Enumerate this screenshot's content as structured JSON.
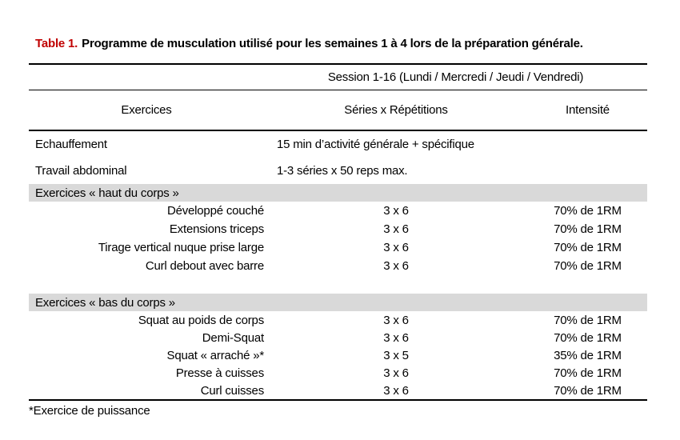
{
  "page": {
    "title_label": "Table 1.",
    "title_text": "Programme de musculation utilisé pour les semaines 1 à 4 lors de la préparation générale.",
    "footnote": "*Exercice de puissance",
    "accent_color": "#C00000",
    "band_color": "#D9D9D9"
  },
  "table": {
    "session_header": "Session 1-16 (Lundi / Mercredi / Jeudi / Vendredi)",
    "columns": [
      "Exercices",
      "Séries x Répétitions",
      "Intensité"
    ],
    "general_rows": [
      {
        "label": "Echauffement",
        "value": "15 min d’activité générale + spécifique"
      },
      {
        "label": "Travail abdominal",
        "value": "1-3 séries x 50 reps max."
      }
    ],
    "sections": [
      {
        "header": "Exercices « haut du corps »",
        "rows": [
          {
            "exercise": "Développé couché",
            "sets": "3 x 6",
            "intensity": "70% de 1RM"
          },
          {
            "exercise": "Extensions triceps",
            "sets": "3 x 6",
            "intensity": "70% de 1RM"
          },
          {
            "exercise": "Tirage vertical nuque prise large",
            "sets": "3 x 6",
            "intensity": "70% de 1RM"
          },
          {
            "exercise": "Curl debout avec barre",
            "sets": "3 x 6",
            "intensity": "70% de 1RM"
          }
        ]
      },
      {
        "header": "Exercices « bas du corps »",
        "rows": [
          {
            "exercise": "Squat au poids de corps",
            "sets": "3 x 6",
            "intensity": "70% de 1RM"
          },
          {
            "exercise": "Demi-Squat",
            "sets": "3 x 6",
            "intensity": "70% de 1RM"
          },
          {
            "exercise": "Squat « arraché »*",
            "sets": "3 x 5",
            "intensity": "35% de 1RM"
          },
          {
            "exercise": "Presse à cuisses",
            "sets": "3 x 6",
            "intensity": "70% de 1RM"
          },
          {
            "exercise": "Curl cuisses",
            "sets": "3 x 6",
            "intensity": "70% de 1RM"
          }
        ]
      }
    ]
  }
}
